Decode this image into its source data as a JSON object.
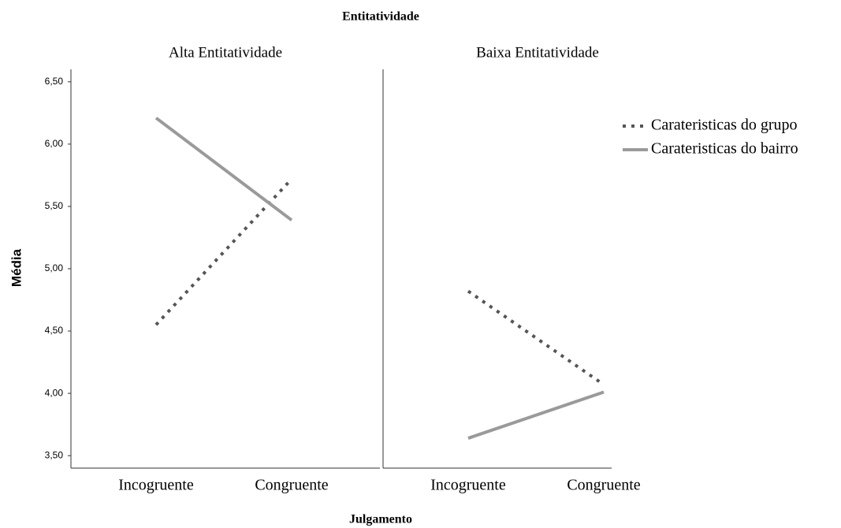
{
  "chart_data": {
    "type": "line",
    "title": "Entitatividade",
    "xlabel": "Julgamento",
    "ylabel": "Média",
    "categories": [
      "Incogruente",
      "Congruente"
    ],
    "ylim": [
      3.4,
      6.6
    ],
    "yticks": [
      {
        "value": 3.5,
        "label": "3,50"
      },
      {
        "value": 4,
        "label": "4,00"
      },
      {
        "value": 4.5,
        "label": "4,50"
      },
      {
        "value": 5,
        "label": "5,00"
      },
      {
        "value": 5.5,
        "label": "5,50"
      },
      {
        "value": 6,
        "label": "6,00"
      },
      {
        "value": 6.5,
        "label": "6,50"
      }
    ],
    "legend": "upper right",
    "series": [
      {
        "name": "Carateristicas do grupo",
        "color": "#555555",
        "style": "dotted"
      },
      {
        "name": "Carateristicas do bairro",
        "color": "#9a9a9a",
        "style": "solid"
      }
    ],
    "panels": [
      {
        "title": "Alta Entitatividade",
        "values": [
          [
            4.55,
            5.72
          ],
          [
            6.21,
            5.39
          ]
        ]
      },
      {
        "title": "Baixa Entitatividade",
        "values": [
          [
            4.82,
            4.07
          ],
          [
            3.64,
            4.01
          ]
        ]
      }
    ]
  }
}
